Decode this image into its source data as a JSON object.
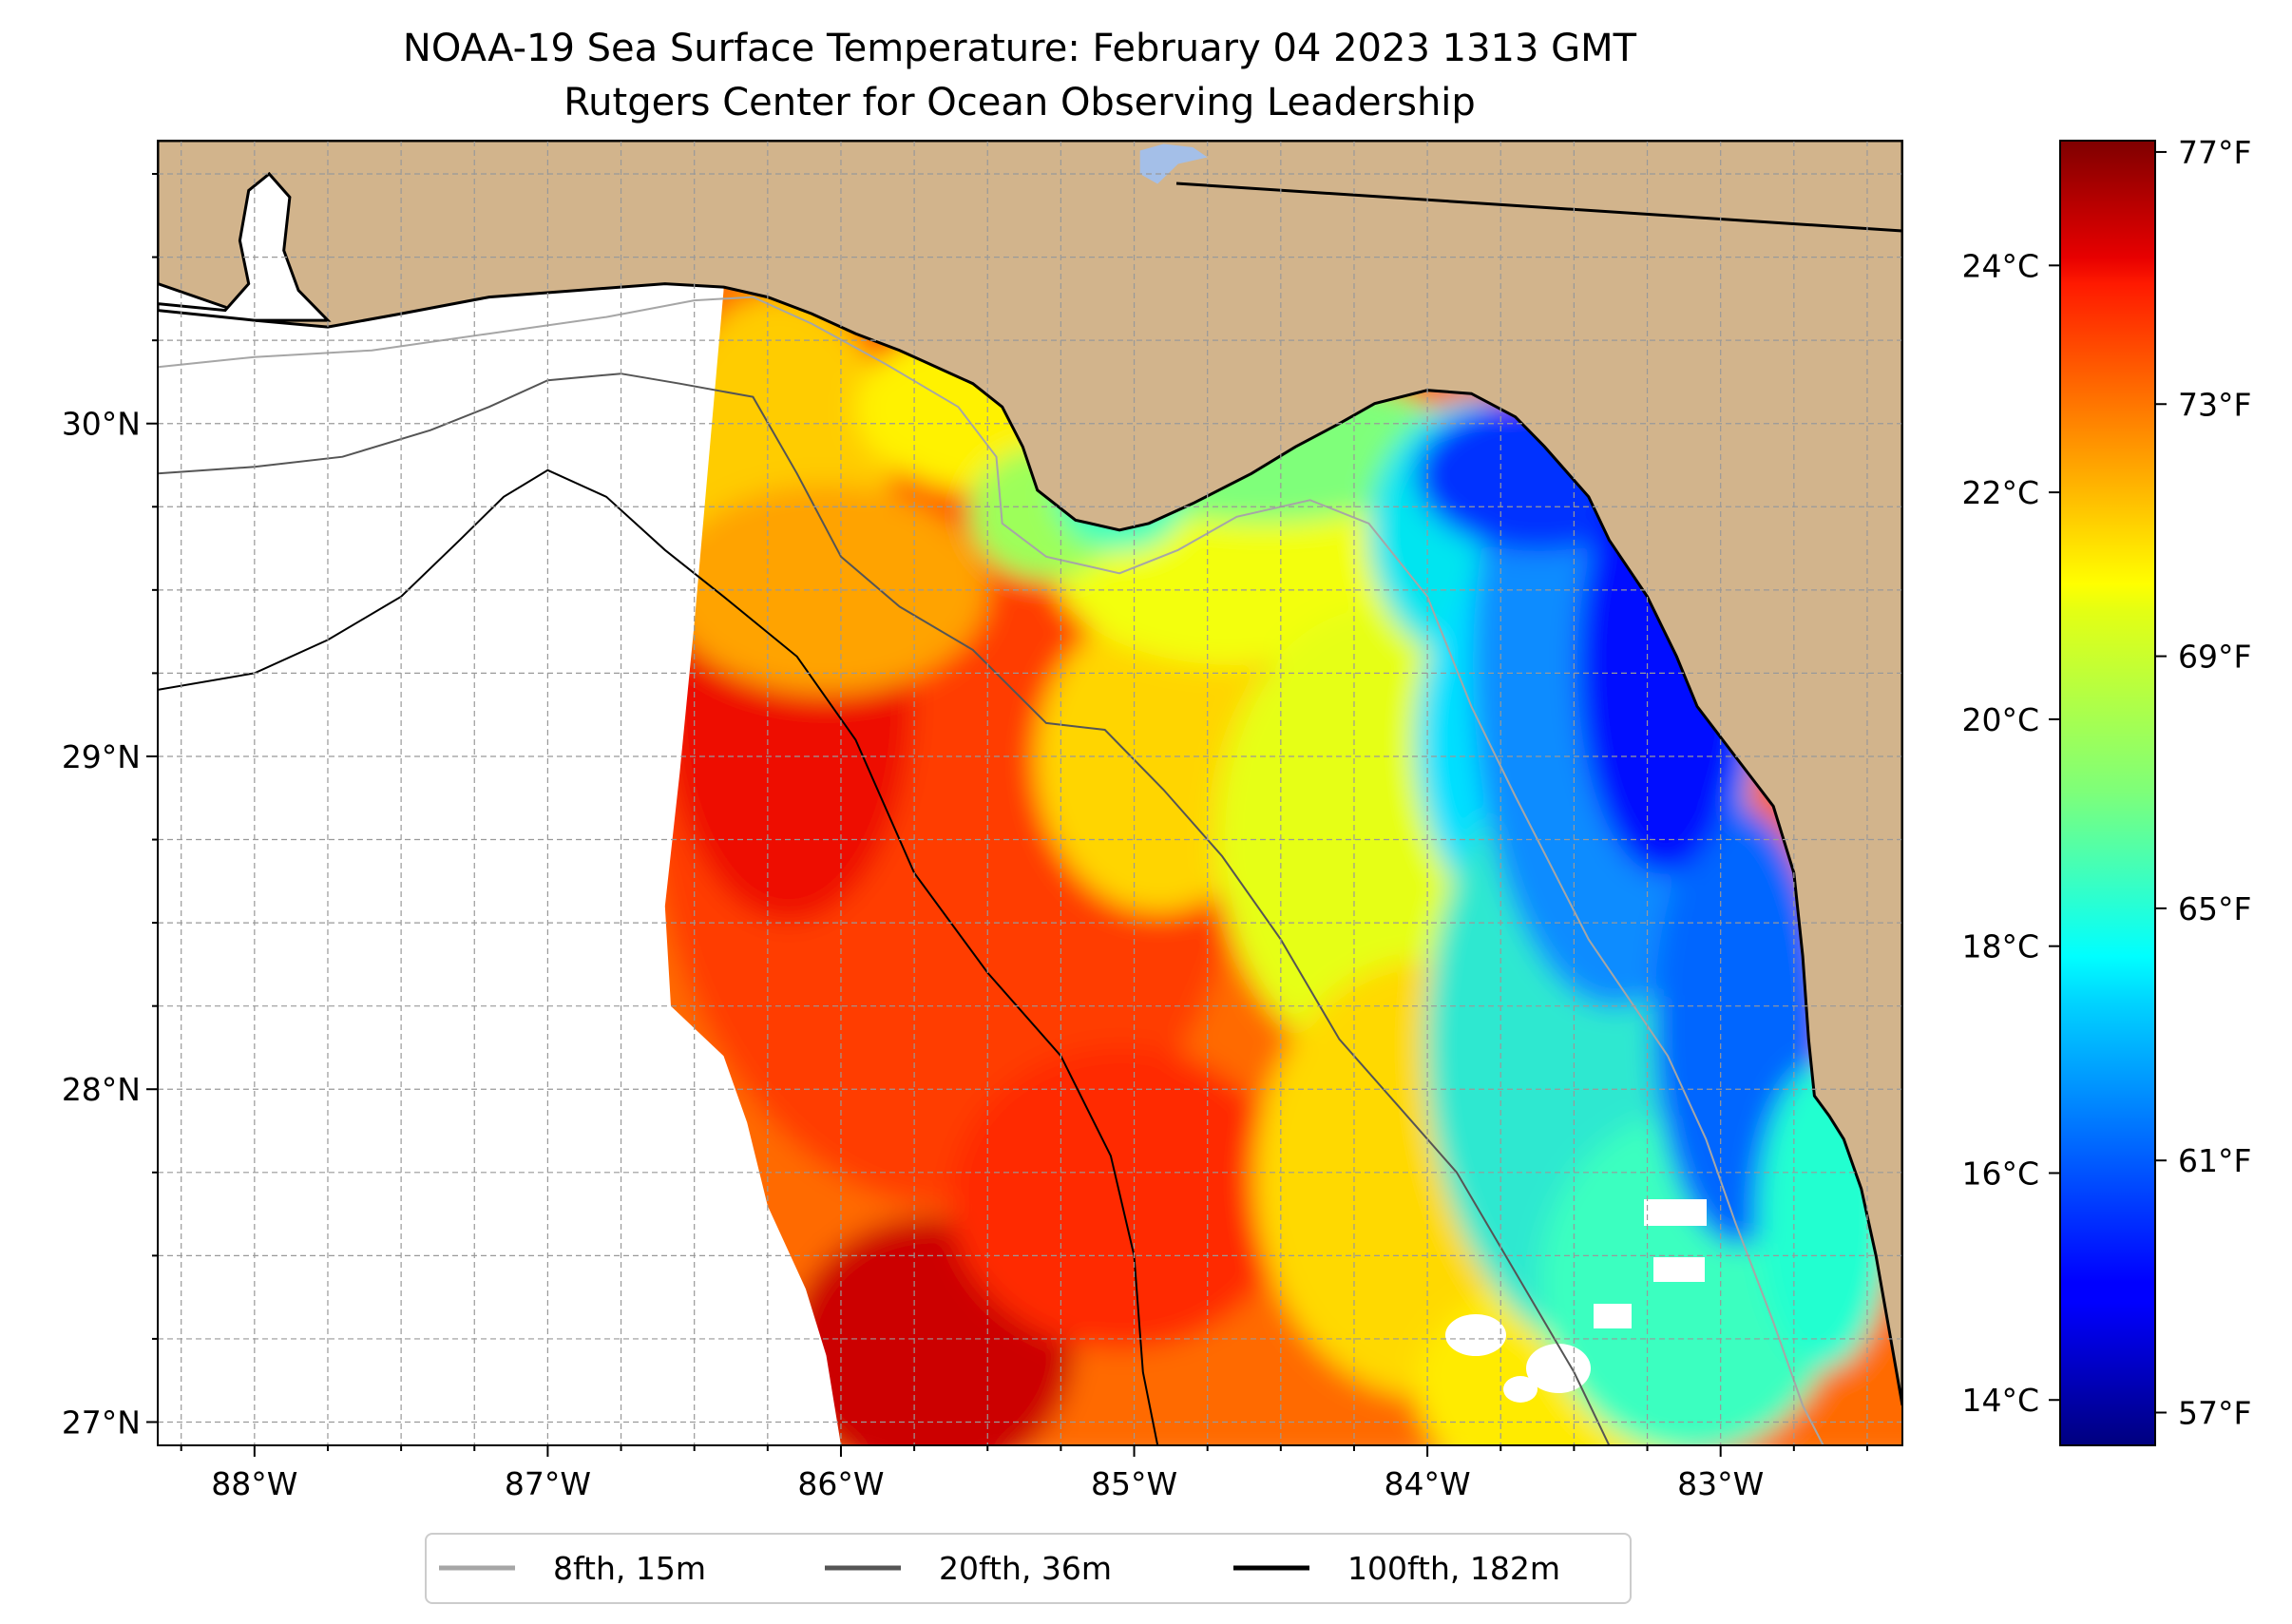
{
  "title": {
    "line1": "NOAA-19 Sea Surface Temperature: February 04 2023 1313 GMT",
    "line2": "Rutgers Center for Ocean Observing Leadership"
  },
  "map": {
    "lon_range": [
      -88.33,
      -82.38
    ],
    "lat_range": [
      26.93,
      30.85
    ],
    "land_color": "#d2b48c",
    "lon_ticks": [
      {
        "value": -88,
        "label": "88°W"
      },
      {
        "value": -87,
        "label": "87°W"
      },
      {
        "value": -86,
        "label": "86°W"
      },
      {
        "value": -85,
        "label": "85°W"
      },
      {
        "value": -84,
        "label": "84°W"
      },
      {
        "value": -83,
        "label": "83°W"
      }
    ],
    "lat_ticks": [
      {
        "value": 30,
        "label": "30°N"
      },
      {
        "value": 29,
        "label": "29°N"
      },
      {
        "value": 28,
        "label": "28°N"
      },
      {
        "value": 27,
        "label": "27°N"
      }
    ],
    "grid": true
  },
  "colorbar": {
    "colormap": "jet",
    "celsius_range": [
      13.6,
      25.1
    ],
    "celsius_ticks": [
      {
        "value": 14,
        "label": "14°C"
      },
      {
        "value": 16,
        "label": "16°C"
      },
      {
        "value": 18,
        "label": "18°C"
      },
      {
        "value": 20,
        "label": "20°C"
      },
      {
        "value": 22,
        "label": "22°C"
      },
      {
        "value": 24,
        "label": "24°C"
      }
    ],
    "fahrenheit_ticks": [
      {
        "value": 57,
        "label": "57°F"
      },
      {
        "value": 61,
        "label": "61°F"
      },
      {
        "value": 65,
        "label": "65°F"
      },
      {
        "value": 69,
        "label": "69°F"
      },
      {
        "value": 73,
        "label": "73°F"
      },
      {
        "value": 77,
        "label": "77°F"
      }
    ]
  },
  "legend": {
    "placement": "bottom-center",
    "entries": [
      {
        "label": "8fth, 15m",
        "color": "#a6a6a6"
      },
      {
        "label": "20fth, 36m",
        "color": "#555555"
      },
      {
        "label": "100fth, 182m",
        "color": "#000000"
      }
    ]
  }
}
